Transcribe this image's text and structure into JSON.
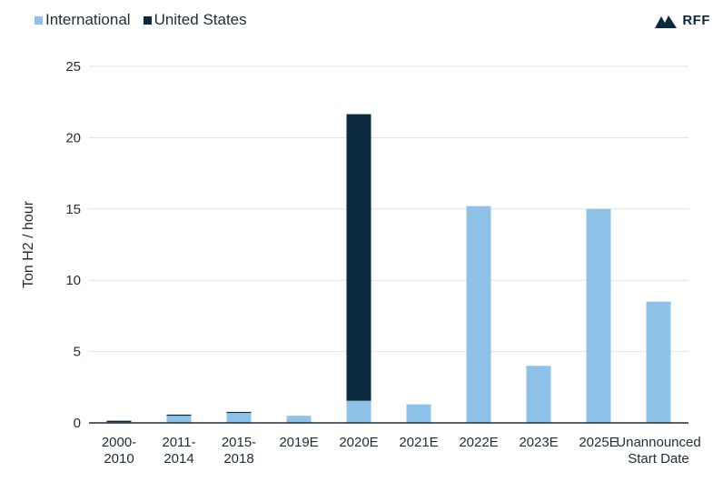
{
  "chart_data": {
    "type": "bar",
    "stacked": true,
    "categories": [
      [
        "2000-",
        "2010"
      ],
      [
        "2011-",
        "2014"
      ],
      [
        "2015-",
        "2018"
      ],
      [
        "2019E"
      ],
      [
        "2020E"
      ],
      [
        "2021E"
      ],
      [
        "2022E"
      ],
      [
        "2023E"
      ],
      [
        "2025E"
      ],
      [
        "Unannounced",
        "Start Date"
      ]
    ],
    "series": [
      {
        "name": "International",
        "color": "#8ec2e8",
        "values": [
          0.05,
          0.5,
          0.7,
          0.5,
          1.55,
          1.3,
          15.2,
          4.0,
          15.0,
          8.5
        ]
      },
      {
        "name": "United States",
        "color": "#0c2a3e",
        "values": [
          0.1,
          0.08,
          0.07,
          0,
          20.1,
          0,
          0,
          0,
          0,
          0
        ]
      }
    ],
    "ylabel": "Ton H2 / hour",
    "ylim": [
      0,
      25
    ],
    "yticks": [
      0,
      5,
      10,
      15,
      20,
      25
    ],
    "grid": true,
    "legend_position": "top-left"
  },
  "logo": {
    "text": "RFF",
    "icon": "mountain-icon"
  }
}
